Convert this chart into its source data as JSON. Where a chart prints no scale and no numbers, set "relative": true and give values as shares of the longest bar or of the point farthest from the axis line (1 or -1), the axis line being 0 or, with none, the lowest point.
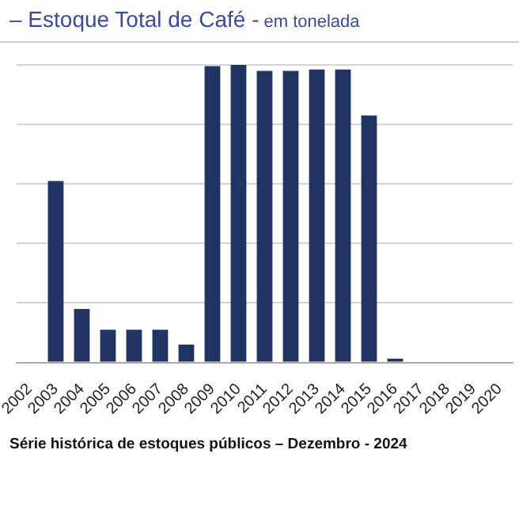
{
  "chart_data": {
    "type": "bar",
    "title": "– Estoque Total de Café -",
    "subtitle": "em tonelada",
    "categories": [
      "2002",
      "2003",
      "2004",
      "2005",
      "2006",
      "2007",
      "2008",
      "2009",
      "2010",
      "2011",
      "2012",
      "2013",
      "2014",
      "2015",
      "2016",
      "2017",
      "2018",
      "2019",
      "2020"
    ],
    "values": [
      0,
      0.61,
      0.18,
      0.11,
      0.11,
      0.11,
      0.06,
      0.996,
      1,
      0.98,
      0.98,
      0.985,
      0.985,
      0.83,
      0.013,
      0,
      0,
      0,
      0
    ],
    "color": "#1f3461",
    "relative": true,
    "grid": "y",
    "legend": false,
    "annotations": [
      "Série histórica de estoques públicos – Dezembro - 2024"
    ]
  }
}
